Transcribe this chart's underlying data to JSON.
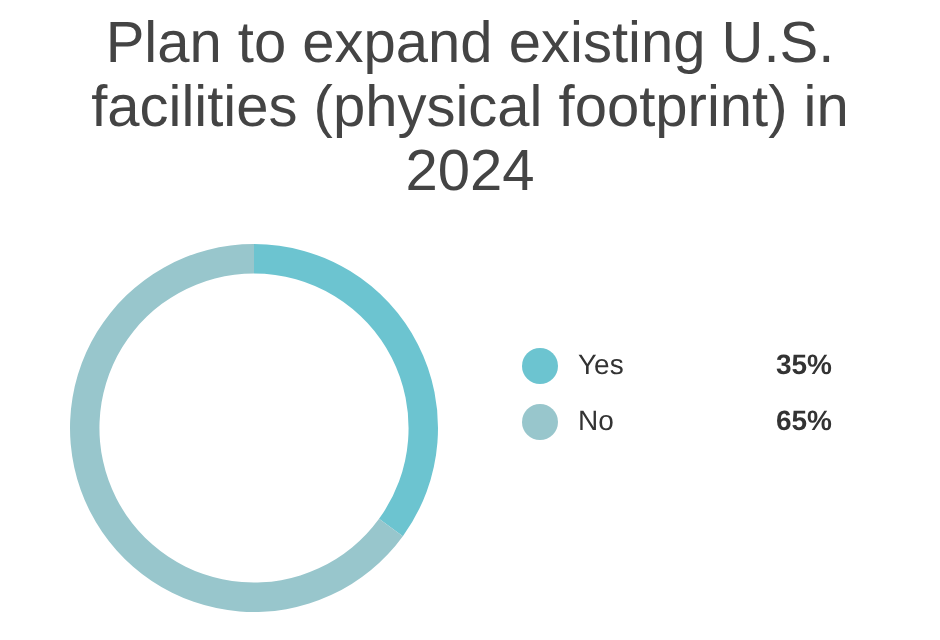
{
  "chart_data": {
    "type": "donut",
    "title": "Plan to expand existing U.S. facilities (physical footprint) in 2024",
    "categories": [
      "Yes",
      "No"
    ],
    "values": [
      35,
      65
    ],
    "colors": [
      "#6cc4d0",
      "#98c6cc"
    ],
    "value_labels": [
      "35%",
      "65%"
    ],
    "legend": "right"
  }
}
